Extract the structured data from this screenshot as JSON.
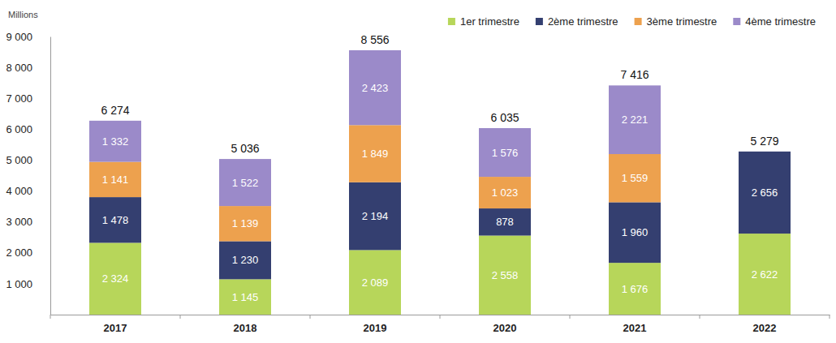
{
  "chart_data": {
    "type": "bar",
    "stacked": true,
    "data_labels": true,
    "grid": false,
    "legend": "top-right",
    "y_label": "Millions",
    "categories": [
      "2017",
      "2018",
      "2019",
      "2020",
      "2021",
      "2022"
    ],
    "ylim": [
      0,
      9000
    ],
    "yticks": [
      {
        "value": 1000,
        "label": "1 000"
      },
      {
        "value": 2000,
        "label": "2 000"
      },
      {
        "value": 3000,
        "label": "3 000"
      },
      {
        "value": 4000,
        "label": "4 000"
      },
      {
        "value": 5000,
        "label": "5 000"
      },
      {
        "value": 6000,
        "label": "6 000"
      },
      {
        "value": 7000,
        "label": "7 000"
      },
      {
        "value": 8000,
        "label": "8 000"
      },
      {
        "value": 9000,
        "label": "9 000"
      }
    ],
    "series": [
      {
        "name": "1er trimestre",
        "color": "#b7d65a",
        "values": [
          2324,
          1145,
          2089,
          2558,
          1676,
          2622
        ],
        "value_labels": [
          "2 324",
          "1 145",
          "2 089",
          "2 558",
          "1 676",
          "2 622"
        ]
      },
      {
        "name": "2ème trimestre",
        "color": "#343f70",
        "values": [
          1478,
          1230,
          2194,
          878,
          1960,
          2656
        ],
        "value_labels": [
          "1 478",
          "1 230",
          "2 194",
          "878",
          "1 960",
          "2 656"
        ]
      },
      {
        "name": "3ème trimestre",
        "color": "#eda14e",
        "values": [
          1141,
          1139,
          1849,
          1023,
          1559,
          null
        ],
        "value_labels": [
          "1 141",
          "1 139",
          "1 849",
          "1 023",
          "1 559",
          null
        ]
      },
      {
        "name": "4ème trimestre",
        "color": "#9b8ac9",
        "values": [
          1332,
          1522,
          2423,
          1576,
          2221,
          null
        ],
        "value_labels": [
          "1 332",
          "1 522",
          "2 423",
          "1 576",
          "2 221",
          null
        ]
      }
    ],
    "totals": {
      "values": [
        6274,
        5036,
        8556,
        6035,
        7416,
        5279
      ],
      "value_labels": [
        "6 274",
        "5 036",
        "8 556",
        "6 035",
        "7 416",
        "5 279"
      ]
    }
  }
}
